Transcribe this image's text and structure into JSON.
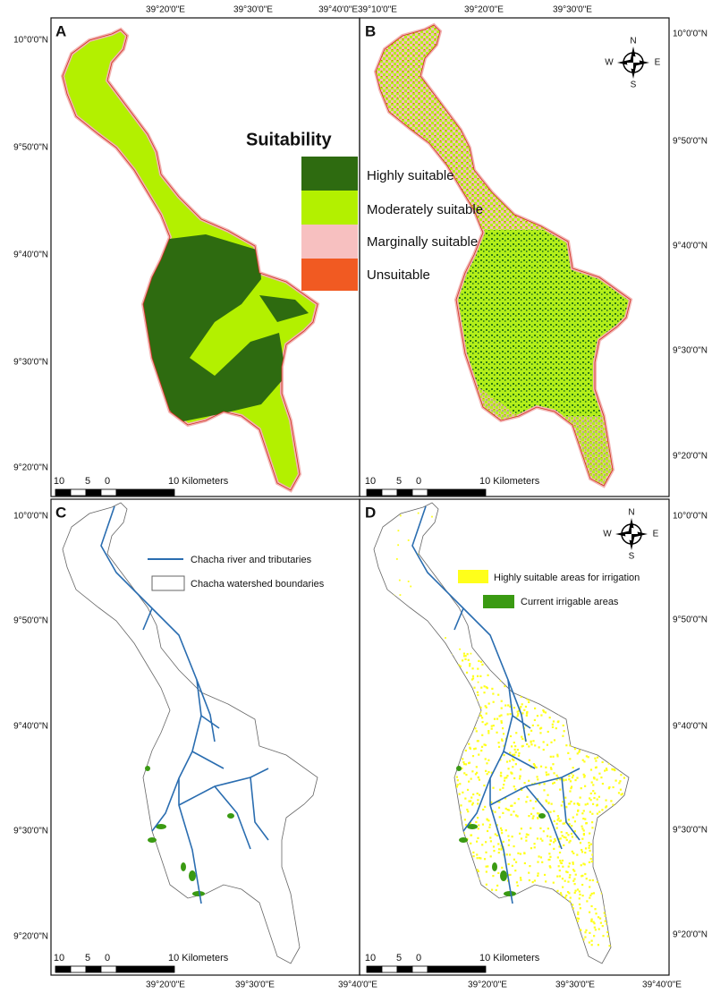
{
  "panels": [
    {
      "label": "A",
      "top_axis": [
        "39°20'0\"E",
        "39°30'0\"E",
        "39°40'0\"E39°10'0\"E"
      ],
      "left_axis": [
        "10°0'0\"N",
        "9°50'0\"N",
        "9°40'0\"N",
        "9°30'0\"N",
        "9°20'0\"N"
      ],
      "scale_bar": {
        "ticks": [
          "10",
          "5",
          "0"
        ],
        "unit": "10 Kilometers"
      },
      "legend": {
        "title": "Suitability",
        "items": [
          "Highly suitable",
          "Moderately suitable",
          "Marginally suitable",
          "Unsuitable"
        ]
      }
    },
    {
      "label": "B",
      "top_axis": [
        "39°20'0\"E",
        "39°30'0\"E"
      ],
      "right_axis": [
        "10°0'0\"N",
        "9°50'0\"N",
        "9°40'0\"N",
        "9°30'0\"N",
        "9°20'0\"N"
      ],
      "scale_bar": {
        "ticks": [
          "10",
          "5",
          "0"
        ],
        "unit": "10 Kilometers"
      },
      "compass": {
        "n": "N",
        "s": "S",
        "w": "W",
        "e": "E"
      }
    },
    {
      "label": "C",
      "left_axis": [
        "10°0'0\"N",
        "9°50'0\"N",
        "9°40'0\"N",
        "9°30'0\"N",
        "9°20'0\"N"
      ],
      "bottom_axis": [
        "39°20'0\"E",
        "39°30'0\"E",
        "39°40'0\"E"
      ],
      "scale_bar": {
        "ticks": [
          "10",
          "5",
          "0"
        ],
        "unit": "10 Kilometers"
      },
      "legend": {
        "items": [
          "Chacha river and tributaries",
          "Chacha watershed boundaries"
        ]
      }
    },
    {
      "label": "D",
      "right_axis": [
        "10°0'0\"N",
        "9°50'0\"N",
        "9°40'0\"N",
        "9°30'0\"N",
        "9°20'0\"N"
      ],
      "bottom_axis": [
        "39°20'0\"E",
        "39°30'0\"E",
        "39°40'0\"E"
      ],
      "scale_bar": {
        "ticks": [
          "10",
          "5",
          "0"
        ],
        "unit": "10 Kilometers"
      },
      "compass": {
        "n": "N",
        "s": "S",
        "w": "W",
        "e": "E"
      },
      "legend": {
        "items": [
          "Highly suitable areas for irrigation",
          "Current irrigable areas"
        ]
      }
    }
  ]
}
